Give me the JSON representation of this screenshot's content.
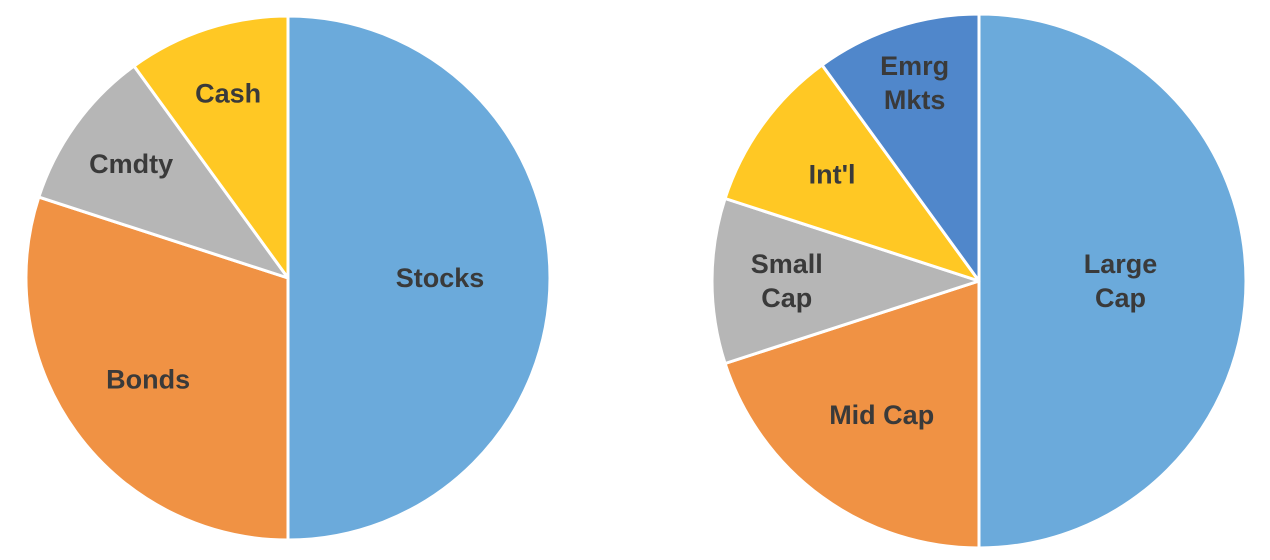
{
  "chart_data": [
    {
      "type": "pie",
      "start": "12 o'clock, clockwise",
      "slices": [
        {
          "label": "Stocks",
          "value": 50,
          "color": "#6BAADB"
        },
        {
          "label": "Bonds",
          "value": 30,
          "color": "#F09244"
        },
        {
          "label": "Cmdty",
          "value": 10,
          "color": "#B6B6B6"
        },
        {
          "label": "Cash",
          "value": 10,
          "color": "#FFC824"
        }
      ]
    },
    {
      "type": "pie",
      "start": "12 o'clock, clockwise",
      "slices": [
        {
          "label": "Large Cap",
          "value": 50,
          "color": "#6BAADB"
        },
        {
          "label": "Mid Cap",
          "value": 20,
          "color": "#F09244"
        },
        {
          "label": "Small Cap",
          "value": 10,
          "color": "#B6B6B6"
        },
        {
          "label": "Int'l",
          "value": 10,
          "color": "#FFC824"
        },
        {
          "label": "Emrg Mkts",
          "value": 10,
          "color": "#5087CB"
        }
      ]
    }
  ]
}
